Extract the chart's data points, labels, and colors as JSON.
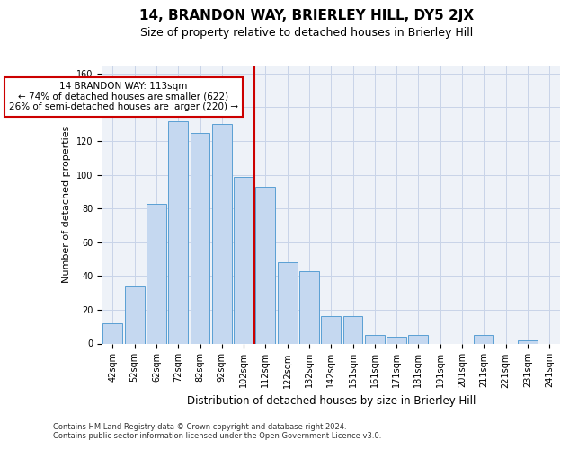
{
  "title": "14, BRANDON WAY, BRIERLEY HILL, DY5 2JX",
  "subtitle": "Size of property relative to detached houses in Brierley Hill",
  "xlabel": "Distribution of detached houses by size in Brierley Hill",
  "ylabel": "Number of detached properties",
  "categories": [
    "42sqm",
    "52sqm",
    "62sqm",
    "72sqm",
    "82sqm",
    "92sqm",
    "102sqm",
    "112sqm",
    "122sqm",
    "132sqm",
    "142sqm",
    "151sqm",
    "161sqm",
    "171sqm",
    "181sqm",
    "191sqm",
    "201sqm",
    "211sqm",
    "221sqm",
    "231sqm",
    "241sqm"
  ],
  "values": [
    12,
    34,
    83,
    132,
    125,
    130,
    99,
    93,
    48,
    43,
    16,
    16,
    5,
    4,
    5,
    0,
    0,
    5,
    0,
    2,
    0
  ],
  "bar_color": "#c5d8f0",
  "bar_edge_color": "#5a9fd4",
  "marker_line_color": "#cc0000",
  "annotation_line1": "14 BRANDON WAY: 113sqm",
  "annotation_line2": "← 74% of detached houses are smaller (622)",
  "annotation_line3": "26% of semi-detached houses are larger (220) →",
  "annotation_box_color": "#ffffff",
  "annotation_box_edge": "#cc0000",
  "ylim": [
    0,
    165
  ],
  "yticks": [
    0,
    20,
    40,
    60,
    80,
    100,
    120,
    140,
    160
  ],
  "grid_color": "#c8d4e8",
  "bg_color": "#eef2f8",
  "footnote": "Contains HM Land Registry data © Crown copyright and database right 2024.\nContains public sector information licensed under the Open Government Licence v3.0.",
  "title_fontsize": 11,
  "subtitle_fontsize": 9,
  "xlabel_fontsize": 8.5,
  "ylabel_fontsize": 8,
  "tick_fontsize": 7,
  "annotation_fontsize": 7.5,
  "footnote_fontsize": 6
}
